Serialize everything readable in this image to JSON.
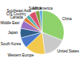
{
  "chart_data": {
    "type": "pie",
    "categories": [
      "China",
      "United States",
      "Western Europe",
      "South Korea",
      "Japan",
      "Middle East",
      "Canada",
      "CIS Country",
      "Southeast Asia",
      "Africa",
      "South America"
    ],
    "values": [
      31,
      17,
      15,
      8,
      7,
      6,
      3,
      3,
      5,
      3,
      2
    ],
    "colors": [
      "#8fd16a",
      "#c9c9c9",
      "#f2c94c",
      "#4a78c8",
      "#2f5f8a",
      "#9b6fc4",
      "#e07b39",
      "#5ab0b0",
      "#d94f6a",
      "#7a9a3a",
      "#4fa3e0"
    ]
  }
}
